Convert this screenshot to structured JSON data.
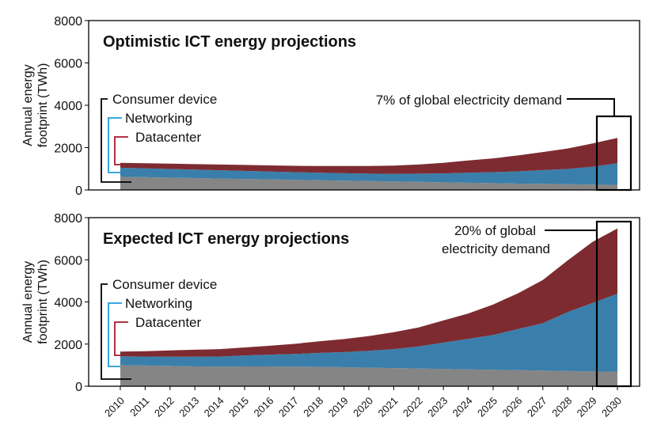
{
  "chart_data": [
    {
      "type": "area",
      "stacked": true,
      "title": "Optimistic ICT energy projections",
      "ylabel": [
        "Annual energy",
        "footprint (TWh)"
      ],
      "xlabel": "",
      "ylim": [
        0,
        8000
      ],
      "yticks": [
        "0",
        "2000",
        "4000",
        "6000",
        "8000"
      ],
      "categories": [
        "2010",
        "2011",
        "2012",
        "2013",
        "2014",
        "2015",
        "2016",
        "2017",
        "2018",
        "2019",
        "2020",
        "2021",
        "2022",
        "2023",
        "2024",
        "2025",
        "2026",
        "2027",
        "2028",
        "2029",
        "2030"
      ],
      "series": [
        {
          "name": "Consumer device",
          "values": [
            620,
            600,
            580,
            560,
            540,
            520,
            500,
            480,
            460,
            440,
            420,
            400,
            380,
            360,
            340,
            320,
            300,
            290,
            270,
            250,
            240
          ]
        },
        {
          "name": "Networking",
          "values": [
            430,
            420,
            410,
            400,
            390,
            380,
            370,
            360,
            350,
            350,
            350,
            360,
            390,
            420,
            470,
            520,
            580,
            650,
            720,
            850,
            1020
          ]
        },
        {
          "name": "Datacenter",
          "values": [
            230,
            240,
            250,
            260,
            270,
            280,
            290,
            300,
            320,
            340,
            360,
            390,
            430,
            500,
            580,
            650,
            750,
            850,
            970,
            1100,
            1200
          ]
        }
      ],
      "legend": [
        "Consumer device",
        "Networking",
        "Datacenter"
      ],
      "annotation": "7% of global electricity demand",
      "annotation_lines": [
        "7% of global electricity demand"
      ]
    },
    {
      "type": "area",
      "stacked": true,
      "title": "Expected ICT energy projections",
      "ylabel": [
        "Annual energy",
        "footprint (TWh)"
      ],
      "xlabel": "",
      "ylim": [
        0,
        8000
      ],
      "yticks": [
        "0",
        "2000",
        "4000",
        "6000",
        "8000"
      ],
      "categories": [
        "2010",
        "2011",
        "2012",
        "2013",
        "2014",
        "2015",
        "2016",
        "2017",
        "2018",
        "2019",
        "2020",
        "2021",
        "2022",
        "2023",
        "2024",
        "2025",
        "2026",
        "2027",
        "2028",
        "2029",
        "2030"
      ],
      "series": [
        {
          "name": "Consumer device",
          "values": [
            1000,
            980,
            960,
            940,
            930,
            940,
            940,
            930,
            920,
            900,
            880,
            860,
            840,
            820,
            800,
            780,
            760,
            740,
            720,
            700,
            690
          ]
        },
        {
          "name": "Networking",
          "values": [
            420,
            430,
            440,
            460,
            480,
            520,
            560,
            600,
            660,
            720,
            800,
            900,
            1050,
            1250,
            1450,
            1650,
            1950,
            2250,
            2800,
            3250,
            3700
          ]
        },
        {
          "name": "Datacenter",
          "values": [
            220,
            250,
            300,
            330,
            350,
            380,
            420,
            480,
            550,
            620,
            700,
            800,
            900,
            1050,
            1200,
            1450,
            1700,
            2050,
            2450,
            2900,
            3100
          ]
        }
      ],
      "legend": [
        "Consumer device",
        "Networking",
        "Datacenter"
      ],
      "annotation": "20% of global electricity demand",
      "annotation_lines": [
        "20% of global",
        "electricity demand"
      ]
    }
  ],
  "colors": {
    "consumer": "#858585",
    "networking": "#3a7fab",
    "datacenter": "#7d2b31",
    "networking_bracket": "#1e9bde",
    "datacenter_bracket": "#a5182b",
    "consumer_bracket": "#000000"
  }
}
